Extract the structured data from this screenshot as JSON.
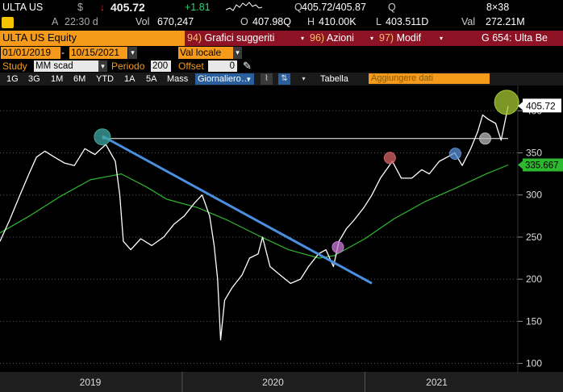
{
  "quote": {
    "ticker": "ULTA US",
    "currency": "$",
    "last_price": "405.72",
    "change": "+1.81",
    "bid_ask_prefix": "Q",
    "bid_ask": "405.72/405.87",
    "bid_ask_suffix": "Q",
    "size": "8×38"
  },
  "stats": {
    "time_prefix": "A",
    "time": "22:30 d",
    "volume_label": "Vol",
    "volume": "670,247",
    "open_label": "O",
    "open": "407.98Q",
    "high_label": "H",
    "high": "410.00K",
    "low_label": "L",
    "low": "403.511D",
    "value_label": "Val",
    "value": "272.21M"
  },
  "titlebar": {
    "security": "ULTA US Equity",
    "btn1_num": "94)",
    "btn1_label": "Grafici suggeriti",
    "btn2_num": "96)",
    "btn2_label": "Azioni",
    "btn3_num": "97)",
    "btn3_label": "Modif",
    "graph_label": "G 654: Ulta Be"
  },
  "dates": {
    "start": "01/01/2019",
    "end": "10/15/2021",
    "currency_mode": "Val locale"
  },
  "study": {
    "label": "Study",
    "study_value": "MM scad",
    "period_label": "Periodo",
    "period_value": "200",
    "offset_label": "Offset",
    "offset_value": "0"
  },
  "toolbar": {
    "periods": [
      "1G",
      "3G",
      "1M",
      "6M",
      "YTD",
      "1A",
      "5A",
      "Mass"
    ],
    "frequency": "Giornaliero",
    "table_label": "Tabella",
    "add_data_placeholder": "Aggiungere dati"
  },
  "chart_data": {
    "type": "line",
    "x_range": [
      "2019-01-01",
      "2021-10-15"
    ],
    "ylim": [
      90,
      430
    ],
    "y_ticks": [
      100,
      150,
      200,
      250,
      300,
      350,
      400
    ],
    "x_ticks": [
      "2019",
      "2020",
      "2021"
    ],
    "last_price_label": "405.72",
    "ma_last_label": "335.667",
    "colors": {
      "price": "#ffffff",
      "ma": "#2eb82e",
      "trendline": "#4a8fe0",
      "resistance": "#ffffff"
    },
    "series": [
      {
        "role": "price",
        "points": [
          [
            "2019-01-01",
            245
          ],
          [
            "2019-01-20",
            270
          ],
          [
            "2019-02-10",
            300
          ],
          [
            "2019-02-28",
            325
          ],
          [
            "2019-03-15",
            345
          ],
          [
            "2019-04-01",
            352
          ],
          [
            "2019-04-20",
            345
          ],
          [
            "2019-05-10",
            338
          ],
          [
            "2019-05-30",
            335
          ],
          [
            "2019-06-20",
            355
          ],
          [
            "2019-07-10",
            348
          ],
          [
            "2019-08-01",
            360
          ],
          [
            "2019-08-20",
            340
          ],
          [
            "2019-08-29",
            300
          ],
          [
            "2019-09-05",
            245
          ],
          [
            "2019-09-20",
            235
          ],
          [
            "2019-10-10",
            248
          ],
          [
            "2019-11-01",
            240
          ],
          [
            "2019-11-25",
            250
          ],
          [
            "2019-12-15",
            265
          ],
          [
            "2020-01-05",
            275
          ],
          [
            "2020-01-25",
            290
          ],
          [
            "2020-02-10",
            300
          ],
          [
            "2020-02-25",
            275
          ],
          [
            "2020-03-05",
            240
          ],
          [
            "2020-03-12",
            200
          ],
          [
            "2020-03-18",
            128
          ],
          [
            "2020-03-26",
            175
          ],
          [
            "2020-04-10",
            190
          ],
          [
            "2020-04-30",
            205
          ],
          [
            "2020-05-15",
            225
          ],
          [
            "2020-06-01",
            230
          ],
          [
            "2020-06-10",
            250
          ],
          [
            "2020-06-25",
            215
          ],
          [
            "2020-07-15",
            205
          ],
          [
            "2020-08-05",
            195
          ],
          [
            "2020-08-25",
            200
          ],
          [
            "2020-09-10",
            215
          ],
          [
            "2020-09-30",
            230
          ],
          [
            "2020-10-15",
            235
          ],
          [
            "2020-10-30",
            215
          ],
          [
            "2020-11-10",
            245
          ],
          [
            "2020-11-25",
            260
          ],
          [
            "2020-12-10",
            270
          ],
          [
            "2020-12-30",
            285
          ],
          [
            "2021-01-15",
            300
          ],
          [
            "2021-02-01",
            320
          ],
          [
            "2021-02-25",
            340
          ],
          [
            "2021-03-15",
            320
          ],
          [
            "2021-04-05",
            320
          ],
          [
            "2021-04-25",
            330
          ],
          [
            "2021-05-10",
            325
          ],
          [
            "2021-05-30",
            340
          ],
          [
            "2021-06-15",
            345
          ],
          [
            "2021-06-30",
            350
          ],
          [
            "2021-07-15",
            335
          ],
          [
            "2021-08-01",
            355
          ],
          [
            "2021-08-15",
            375
          ],
          [
            "2021-08-25",
            395
          ],
          [
            "2021-09-05",
            390
          ],
          [
            "2021-09-20",
            385
          ],
          [
            "2021-10-01",
            365
          ],
          [
            "2021-10-15",
            405.72
          ]
        ]
      },
      {
        "role": "moving_average_200",
        "points": [
          [
            "2019-01-01",
            255
          ],
          [
            "2019-03-01",
            275
          ],
          [
            "2019-05-01",
            298
          ],
          [
            "2019-07-01",
            318
          ],
          [
            "2019-09-01",
            325
          ],
          [
            "2019-10-20",
            310
          ],
          [
            "2019-12-01",
            295
          ],
          [
            "2020-02-01",
            285
          ],
          [
            "2020-04-01",
            270
          ],
          [
            "2020-06-01",
            252
          ],
          [
            "2020-08-01",
            235
          ],
          [
            "2020-10-01",
            225
          ],
          [
            "2020-11-01",
            228
          ],
          [
            "2021-01-01",
            248
          ],
          [
            "2021-03-01",
            272
          ],
          [
            "2021-05-01",
            292
          ],
          [
            "2021-07-01",
            308
          ],
          [
            "2021-09-01",
            325
          ],
          [
            "2021-10-15",
            335.667
          ]
        ]
      }
    ],
    "trendline": [
      [
        "2019-07-25",
        370
      ],
      [
        "2021-01-15",
        195
      ]
    ],
    "resistance": {
      "value": 367,
      "from": "2019-07-25",
      "to": "2021-10-15"
    },
    "markers": [
      {
        "date": "2019-07-25",
        "value": 369,
        "color": "#3fa7a0"
      },
      {
        "date": "2020-11-08",
        "value": 238,
        "color": "#c77ad6"
      },
      {
        "date": "2021-02-20",
        "value": 344,
        "color": "#d46464"
      },
      {
        "date": "2021-07-01",
        "value": 349,
        "color": "#5b8fd4"
      },
      {
        "date": "2021-08-30",
        "value": 367,
        "color": "#b8b8b8"
      },
      {
        "date": "2021-10-12",
        "value": 410,
        "color": "#a5c832"
      }
    ]
  }
}
